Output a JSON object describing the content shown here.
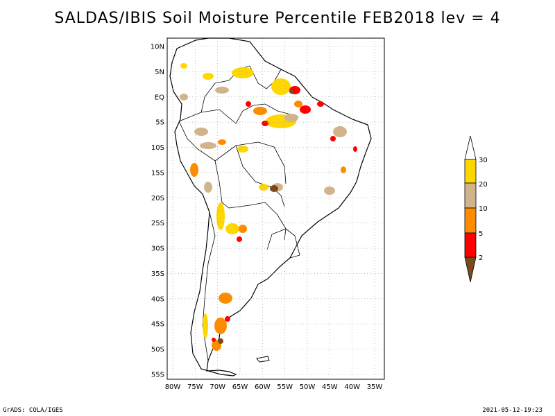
{
  "title": "SALDAS/IBIS Soil Moisture Percentile FEB2018 lev = 4",
  "map": {
    "lon_labels": [
      "80W",
      "75W",
      "70W",
      "65W",
      "60W",
      "55W",
      "50W",
      "45W",
      "40W",
      "35W"
    ],
    "lat_labels": [
      "10N",
      "5N",
      "EQ",
      "5S",
      "10S",
      "15S",
      "20S",
      "25S",
      "30S",
      "35S",
      "40S",
      "45S",
      "50S",
      "55S"
    ],
    "lon_range": [
      -81,
      -32
    ],
    "lat_range": [
      -56,
      12
    ],
    "grid": "dotted"
  },
  "legend": {
    "levels": [
      "2",
      "5",
      "10",
      "20",
      "30"
    ],
    "colors": {
      "lt2": "#7a4a1c",
      "2-5": "#ff0000",
      "5-10": "#ff8c00",
      "10-20": "#d2b48c",
      "20-30": "#ffd700",
      "gt30": "#ffffff"
    }
  },
  "footer": {
    "left": "GrADS: COLA/IGES",
    "right": "2021-05-12-19:23"
  }
}
